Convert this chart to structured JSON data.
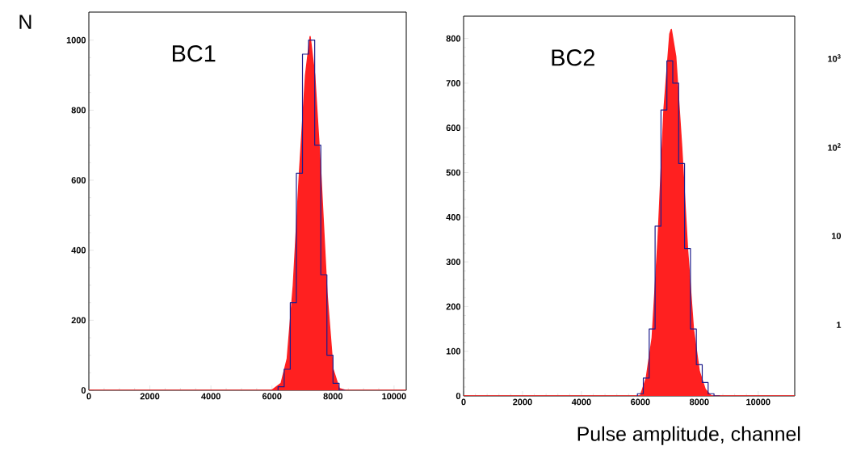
{
  "chart_data": [
    {
      "type": "histogram",
      "ylabel": "N",
      "annotations": [
        "BC1"
      ],
      "xlim": [
        0,
        10400
      ],
      "ylim": [
        0,
        1080
      ],
      "xticks": [
        0,
        2000,
        4000,
        6000,
        8000,
        10000
      ],
      "yticks": [
        0,
        200,
        400,
        600,
        800,
        1000
      ],
      "series": [
        {
          "type": "area",
          "color": "#ff2020",
          "x": [
            0,
            6000,
            6300,
            6500,
            6700,
            6900,
            7100,
            7250,
            7400,
            7600,
            7800,
            8000,
            8200,
            8400,
            10400
          ],
          "values": [
            0,
            0,
            20,
            90,
            300,
            620,
            900,
            1010,
            900,
            620,
            280,
            60,
            5,
            0,
            0
          ]
        },
        {
          "type": "histogram",
          "color": "#1c1c8c",
          "bins": [
            6200,
            6400,
            6600,
            6800,
            7000,
            7200,
            7400,
            7600,
            7800,
            8000,
            8200,
            8400
          ],
          "values": [
            10,
            60,
            250,
            620,
            960,
            1000,
            700,
            330,
            100,
            20,
            0
          ]
        }
      ]
    },
    {
      "type": "histogram",
      "xlabel": "Pulse amplitude, channel",
      "annotations": [
        "BC2"
      ],
      "xlim": [
        0,
        11240
      ],
      "ylim": [
        0,
        850
      ],
      "xticks": [
        0,
        2000,
        4000,
        6000,
        8000,
        10000
      ],
      "yticks": [
        0,
        100,
        200,
        300,
        400,
        500,
        600,
        700,
        800
      ],
      "series": [
        {
          "type": "area",
          "color": "#ff2020",
          "x": [
            0,
            6000,
            6200,
            6400,
            6600,
            6800,
            7000,
            7050,
            7200,
            7400,
            7600,
            7800,
            8000,
            8200,
            8400,
            11240
          ],
          "values": [
            0,
            0,
            40,
            130,
            350,
            640,
            810,
            820,
            760,
            560,
            330,
            150,
            55,
            15,
            0,
            0
          ]
        },
        {
          "type": "histogram",
          "color": "#1c1c8c",
          "bins": [
            5900,
            6100,
            6300,
            6500,
            6700,
            6900,
            7100,
            7300,
            7500,
            7700,
            7900,
            8100,
            8300,
            8500,
            8700
          ],
          "values": [
            5,
            40,
            150,
            380,
            640,
            750,
            700,
            520,
            330,
            150,
            70,
            30,
            5,
            0
          ]
        }
      ]
    },
    {
      "type": "other",
      "annotations": [
        "10$^{3}$",
        "10$^{2}$",
        "10",
        "1"
      ]
    }
  ]
}
